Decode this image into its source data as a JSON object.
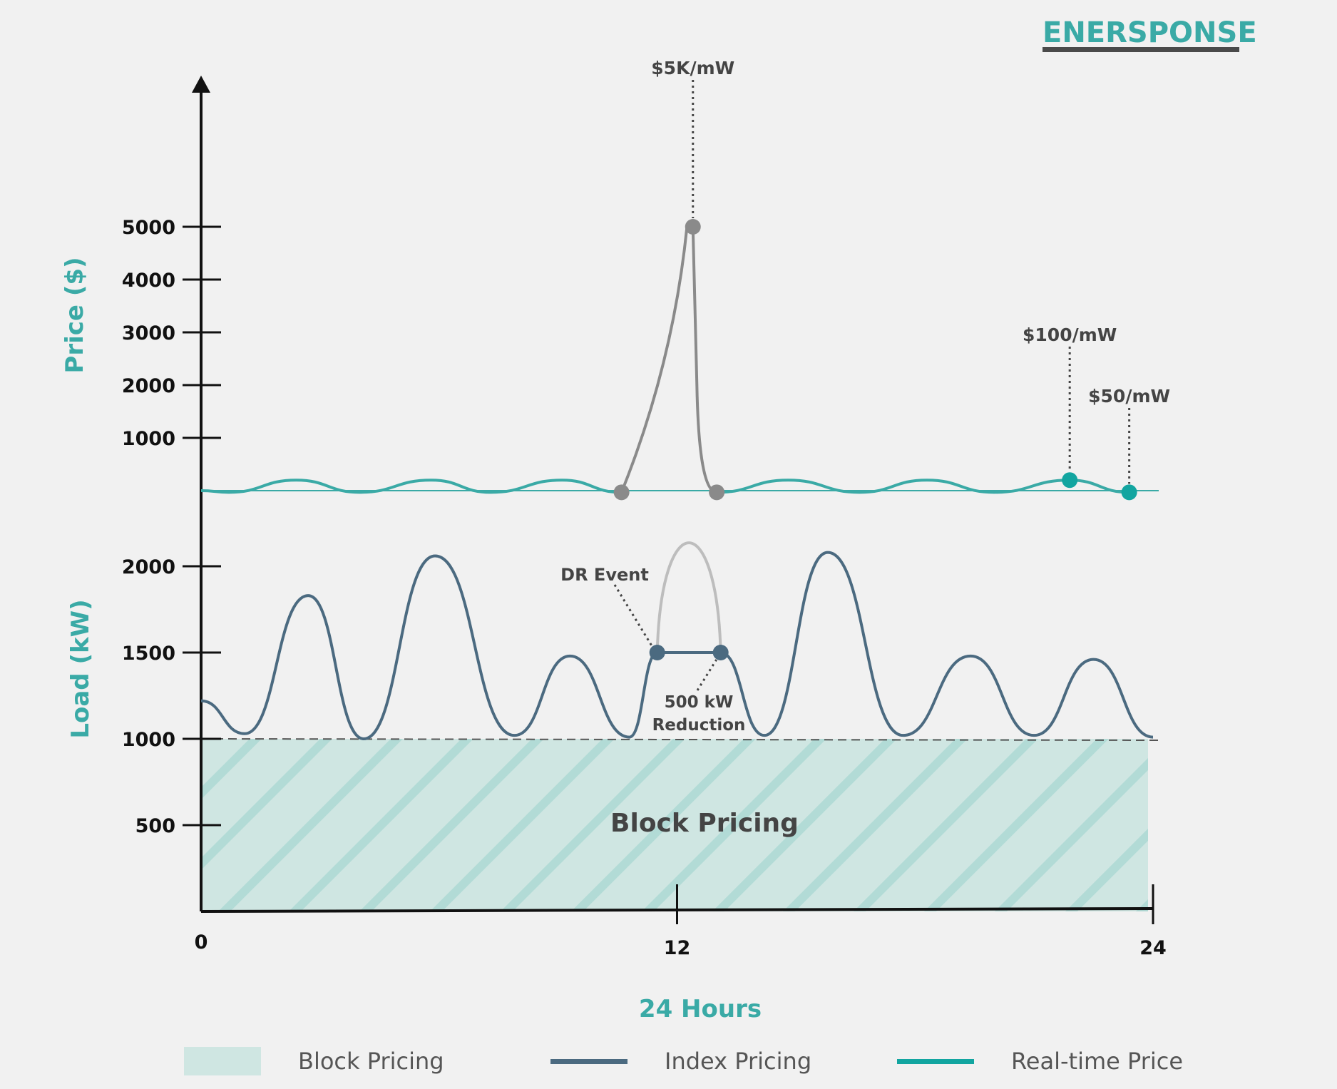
{
  "logo": {
    "text": "ENERSPONSE"
  },
  "colors": {
    "background": "#f1f1f1",
    "axis": "#111111",
    "teal": "#3aaaa6",
    "teal_dot": "#12a5a0",
    "spike": "#8a8a8a",
    "load": "#4b6a80",
    "load_removed": "#bdbdbd",
    "block_fill": "#cfe6e2",
    "block_hatch": "#b2dbd6",
    "label_dark": "#444444"
  },
  "chart_data": [
    {
      "panel": "price",
      "type": "line",
      "ylabel": "Price ($)",
      "yticks": [
        1000,
        2000,
        3000,
        4000,
        5000
      ],
      "xlim": [
        0,
        24
      ],
      "series": [
        {
          "name": "Real-time Price",
          "x": [
            0,
            0.7,
            2.4,
            4.0,
            5.8,
            7.3,
            9.1,
            10.6
          ],
          "y": [
            0,
            -300,
            200,
            -300,
            200,
            -300,
            200,
            -300
          ]
        },
        {
          "x": [
            10.6,
            11.5,
            12.25,
            12.4,
            12.5,
            12.65,
            13.0
          ],
          "y": [
            -300,
            2000,
            5000,
            5000,
            2000,
            -100,
            -300
          ]
        },
        {
          "x": [
            13.0,
            14.8,
            16.6,
            18.3,
            20.0,
            21.9,
            23.4
          ],
          "y": [
            -300,
            200,
            -300,
            200,
            -300,
            200,
            -300
          ]
        }
      ],
      "annotations": [
        {
          "text": "$5K/mW",
          "x": 12.4,
          "y": 5000
        },
        {
          "text": "$100/mW",
          "x": 21.9,
          "y": 200
        },
        {
          "text": "$50/mW",
          "x": 23.4,
          "y": -300
        }
      ]
    },
    {
      "panel": "load",
      "type": "line",
      "ylabel": "Load (kW)",
      "xlabel": "24 Hours",
      "yticks": [
        500,
        1000,
        1500,
        2000
      ],
      "xticks": [
        0,
        12,
        24
      ],
      "xlim": [
        0,
        24
      ],
      "block_pricing_level": 1000,
      "series": [
        {
          "name": "Index Pricing",
          "x": [
            0,
            1.1,
            2.7,
            4.1,
            5.9,
            7.9,
            9.3,
            10.8,
            11.5,
            13.1,
            14.2,
            15.8,
            17.7,
            19.4,
            21.0,
            22.5,
            24
          ],
          "y": [
            1220,
            1030,
            1830,
            1000,
            2060,
            1020,
            1480,
            1010,
            1500,
            1500,
            1020,
            2080,
            1020,
            1480,
            1020,
            1460,
            1010
          ]
        },
        {
          "name": "DR Event",
          "x": [
            11.5,
            12.3,
            13.1
          ],
          "y": [
            1500,
            2100,
            1500
          ]
        }
      ],
      "annotations": [
        {
          "text": "DR Event",
          "x": 11.5,
          "y": 1500
        },
        {
          "text": "500 kW",
          "x": 13.1,
          "y": 1500
        },
        {
          "text": "Reduction",
          "x": 13.1,
          "y": 1500
        },
        {
          "text": "Block Pricing",
          "x": 12.4,
          "y": 500
        }
      ]
    }
  ],
  "legend": [
    {
      "label": "Block Pricing",
      "swatch": "box"
    },
    {
      "label": "Index Pricing",
      "swatch": "line",
      "color": "#4b6a80"
    },
    {
      "label": "Real-time Price",
      "swatch": "line",
      "color": "#12a5a0"
    }
  ]
}
